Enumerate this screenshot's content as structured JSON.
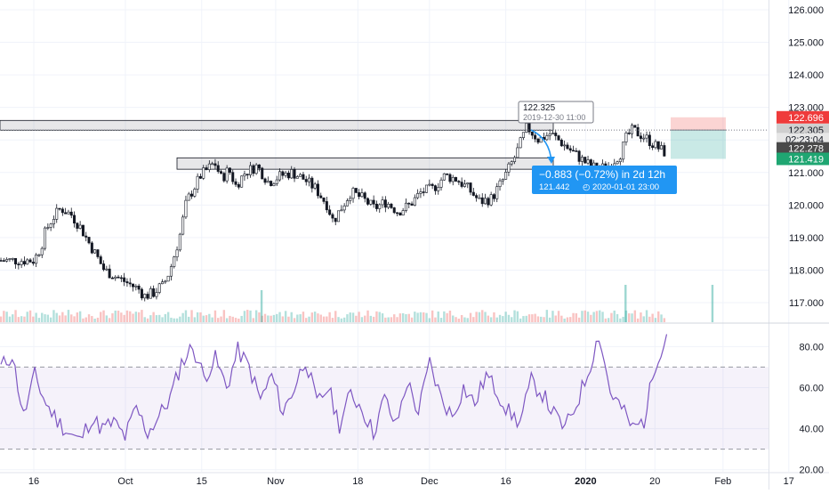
{
  "chart_data": [
    {
      "type": "candlestick",
      "title": "",
      "ylim": [
        116.4,
        126.3
      ],
      "price_axis_ticks": [
        "117.000",
        "118.000",
        "119.000",
        "120.000",
        "121.000",
        "122.000",
        "123.000",
        "124.000",
        "125.000",
        "126.000"
      ],
      "price_axis_tick_values": [
        117,
        118,
        119,
        120,
        121,
        122,
        123,
        124,
        125,
        126
      ],
      "colors": {
        "up": "#26a69a",
        "down": "#ef5350",
        "candle_body": "#000000",
        "accent": "#2196f3"
      },
      "close_path": {
        "x": [
          0.0,
          0.6,
          1.0,
          1.6,
          2.3,
          3.2,
          4.0,
          4.6,
          5.4,
          6.0,
          7.0,
          8.0,
          9.0,
          9.4,
          10.2,
          10.8,
          11.0,
          11.6,
          12.4,
          13.0,
          14.2,
          15.4,
          16.0,
          16.6,
          17.2,
          18.0,
          19.0,
          20.0,
          21.0,
          22.0,
          23.0,
          24.0,
          25.0,
          25.5,
          26.0,
          27.0,
          28.0,
          29.0,
          30.0,
          31.0,
          32.0,
          33.0,
          34.0,
          35.0,
          36.0,
          37.0,
          38.0,
          39.0,
          40.0,
          41.0,
          42.0,
          43.0,
          44.0,
          45.0,
          46.0,
          47.0,
          48.0,
          49.0,
          50.0,
          50.5,
          51.0,
          52.0,
          53.0,
          53.8
        ],
        "y": [
          118.3,
          118.7,
          119.2,
          119.6,
          119.9,
          119.7,
          119.3,
          118.9,
          118.4,
          118.0,
          117.8,
          117.6,
          117.4,
          117.2,
          117.3,
          117.5,
          117.5,
          118.0,
          119.0,
          120.1,
          120.9,
          121.3,
          120.8,
          121.1,
          120.6,
          121.0,
          121.2,
          120.7,
          120.9,
          121.0,
          120.8,
          120.5,
          120.0,
          119.5,
          119.8,
          120.4,
          120.2,
          119.9,
          120.1,
          119.8,
          120.0,
          120.4,
          120.5,
          120.9,
          120.8,
          120.5,
          120.1,
          120.2,
          120.8,
          121.5,
          122.4,
          122.0,
          122.2,
          121.9,
          121.6,
          121.3,
          121.1,
          121.2,
          121.6,
          122.1,
          122.3,
          122.1,
          121.8,
          121.6
        ]
      },
      "volume_highlights": [
        {
          "x": 19.4,
          "volume_relative": 0.8
        },
        {
          "x": 50.4,
          "volume_relative": 1.0
        },
        {
          "x": 57.8,
          "volume_relative": 1.0
        }
      ],
      "horizontal_zones": [
        {
          "label": "upper-resistance-zone",
          "y_top": 122.6,
          "y_bottom": 122.3
        },
        {
          "label": "lower-support-zone",
          "y_top": 121.45,
          "y_bottom": 121.1
        }
      ],
      "dotted_price_line": 122.305,
      "tooltip_top": {
        "value": "122.325",
        "time": "2019-12-30 11:00"
      },
      "measure_box": {
        "change": "−0.883 (−0.72%) in 2d 12h",
        "target_price": "121.442",
        "target_time": "2020-01-01  23:00"
      },
      "price_labels": [
        {
          "label": "122.696",
          "value": 122.696,
          "color": "#ef3b3b",
          "text_color": "#ffffff"
        },
        {
          "label": "122.305",
          "value": 122.305,
          "color": "#cfcfcf",
          "text_color": "#131722"
        },
        {
          "label": "02:23:04",
          "value": 122.025,
          "color": "#e7e7e7",
          "text_color": "#131722"
        },
        {
          "label": "122.278",
          "value": 121.74,
          "color": "#4a4a4a",
          "text_color": "#ffffff"
        },
        {
          "label": "121.419",
          "value": 121.419,
          "color": "#1fa672",
          "text_color": "#ffffff"
        }
      ]
    },
    {
      "type": "line",
      "title": "",
      "ylim": [
        19,
        91
      ],
      "axis_ticks": [
        "20.00",
        "40.00",
        "60.00",
        "80.00"
      ],
      "axis_tick_values": [
        20,
        40,
        60,
        80
      ],
      "band": [
        30,
        70
      ],
      "series": [
        {
          "color": "#7e57c2",
          "x": [
            0,
            1,
            2,
            3,
            4,
            5,
            6,
            7,
            8,
            9,
            10,
            11,
            12,
            13,
            14,
            15,
            16,
            17,
            18,
            19,
            20,
            21,
            22,
            23,
            24,
            25,
            26,
            27,
            28,
            29,
            30,
            31,
            32,
            33,
            34,
            35,
            36,
            37,
            38,
            39,
            40,
            41,
            42,
            43,
            44,
            45,
            46,
            47,
            48,
            49,
            50,
            51,
            52,
            53,
            54,
            55,
            56,
            57,
            58,
            59
          ],
          "values": [
            70,
            76,
            46,
            66,
            52,
            44,
            38,
            34,
            45,
            40,
            43,
            36,
            50,
            38,
            46,
            55,
            72,
            80,
            65,
            74,
            60,
            78,
            70,
            54,
            66,
            48,
            60,
            74,
            52,
            60,
            42,
            57,
            50,
            38,
            55,
            41,
            63,
            48,
            72,
            55,
            46,
            60,
            52,
            66,
            58,
            48,
            43,
            63,
            57,
            47,
            40,
            52,
            67,
            86,
            58,
            50,
            40,
            44,
            72,
            86
          ]
        }
      ]
    }
  ],
  "time_axis": {
    "labels": [
      "16",
      "Oct",
      "15",
      "Nov",
      "18",
      "Dec",
      "16",
      "2020",
      "20",
      "Feb",
      "17"
    ],
    "bold_labels": [
      "2020"
    ],
    "positions": [
      0,
      7.8,
      14.3,
      20.6,
      27.6,
      33.7,
      40.2,
      47.0,
      52.9,
      58.7,
      64.3
    ]
  }
}
